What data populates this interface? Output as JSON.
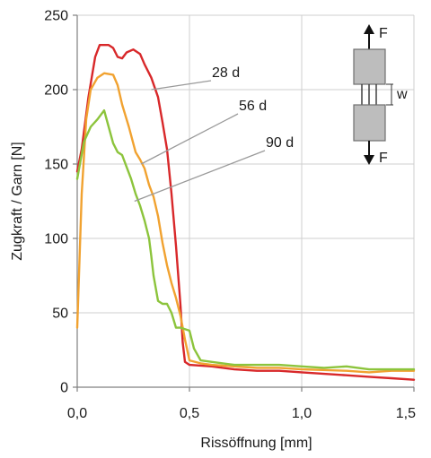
{
  "chart_data": {
    "type": "line",
    "xlabel": "Rissöffnung [mm]",
    "ylabel": "Zugkraft / Garn [N]",
    "xlim": [
      0,
      1.5
    ],
    "ylim": [
      0,
      250
    ],
    "x_ticks": [
      "0,0",
      "0,5",
      "1,0",
      "1,5"
    ],
    "y_ticks": [
      "0",
      "50",
      "100",
      "150",
      "200",
      "250"
    ],
    "grid": true,
    "series": [
      {
        "name": "28 d",
        "color": "#d8282a",
        "points": [
          [
            0,
            145
          ],
          [
            0.02,
            160
          ],
          [
            0.05,
            195
          ],
          [
            0.08,
            222
          ],
          [
            0.1,
            230
          ],
          [
            0.14,
            230
          ],
          [
            0.16,
            228
          ],
          [
            0.18,
            222
          ],
          [
            0.2,
            221
          ],
          [
            0.22,
            225
          ],
          [
            0.25,
            227
          ],
          [
            0.28,
            224
          ],
          [
            0.3,
            217
          ],
          [
            0.33,
            208
          ],
          [
            0.36,
            195
          ],
          [
            0.38,
            178
          ],
          [
            0.4,
            160
          ],
          [
            0.42,
            130
          ],
          [
            0.44,
            95
          ],
          [
            0.46,
            55
          ],
          [
            0.47,
            30
          ],
          [
            0.48,
            17
          ],
          [
            0.5,
            15
          ],
          [
            0.6,
            14
          ],
          [
            0.7,
            12
          ],
          [
            0.8,
            11
          ],
          [
            0.9,
            11
          ],
          [
            1.0,
            10
          ],
          [
            1.1,
            9
          ],
          [
            1.2,
            8
          ],
          [
            1.3,
            7
          ],
          [
            1.4,
            6
          ],
          [
            1.5,
            5
          ]
        ]
      },
      {
        "name": "56 d",
        "color": "#f1a230",
        "points": [
          [
            0,
            40
          ],
          [
            0.02,
            130
          ],
          [
            0.04,
            180
          ],
          [
            0.06,
            200
          ],
          [
            0.09,
            208
          ],
          [
            0.12,
            211
          ],
          [
            0.16,
            210
          ],
          [
            0.18,
            203
          ],
          [
            0.2,
            190
          ],
          [
            0.23,
            175
          ],
          [
            0.26,
            158
          ],
          [
            0.28,
            153
          ],
          [
            0.3,
            147
          ],
          [
            0.32,
            136
          ],
          [
            0.34,
            128
          ],
          [
            0.36,
            115
          ],
          [
            0.38,
            97
          ],
          [
            0.4,
            82
          ],
          [
            0.42,
            70
          ],
          [
            0.44,
            60
          ],
          [
            0.46,
            48
          ],
          [
            0.48,
            32
          ],
          [
            0.5,
            18
          ],
          [
            0.55,
            16
          ],
          [
            0.6,
            15
          ],
          [
            0.7,
            14
          ],
          [
            0.8,
            13
          ],
          [
            0.9,
            13
          ],
          [
            1.0,
            12
          ],
          [
            1.2,
            11
          ],
          [
            1.3,
            10
          ],
          [
            1.4,
            11
          ],
          [
            1.5,
            11
          ]
        ]
      },
      {
        "name": "90 d",
        "color": "#8cc43c",
        "points": [
          [
            0,
            140
          ],
          [
            0.03,
            165
          ],
          [
            0.06,
            175
          ],
          [
            0.09,
            180
          ],
          [
            0.12,
            186
          ],
          [
            0.14,
            175
          ],
          [
            0.16,
            164
          ],
          [
            0.18,
            158
          ],
          [
            0.2,
            156
          ],
          [
            0.22,
            148
          ],
          [
            0.24,
            140
          ],
          [
            0.26,
            130
          ],
          [
            0.28,
            122
          ],
          [
            0.3,
            112
          ],
          [
            0.32,
            100
          ],
          [
            0.33,
            88
          ],
          [
            0.34,
            75
          ],
          [
            0.36,
            58
          ],
          [
            0.38,
            56
          ],
          [
            0.4,
            56
          ],
          [
            0.42,
            50
          ],
          [
            0.44,
            40
          ],
          [
            0.46,
            40
          ],
          [
            0.5,
            38
          ],
          [
            0.52,
            26
          ],
          [
            0.55,
            18
          ],
          [
            0.6,
            17
          ],
          [
            0.7,
            15
          ],
          [
            0.8,
            15
          ],
          [
            0.9,
            15
          ],
          [
            1.0,
            14
          ],
          [
            1.1,
            13
          ],
          [
            1.2,
            14
          ],
          [
            1.3,
            12
          ],
          [
            1.4,
            12
          ],
          [
            1.5,
            12
          ]
        ]
      }
    ],
    "inset": {
      "force_label_top": "F",
      "force_label_bottom": "F",
      "gap_label": "w"
    }
  }
}
